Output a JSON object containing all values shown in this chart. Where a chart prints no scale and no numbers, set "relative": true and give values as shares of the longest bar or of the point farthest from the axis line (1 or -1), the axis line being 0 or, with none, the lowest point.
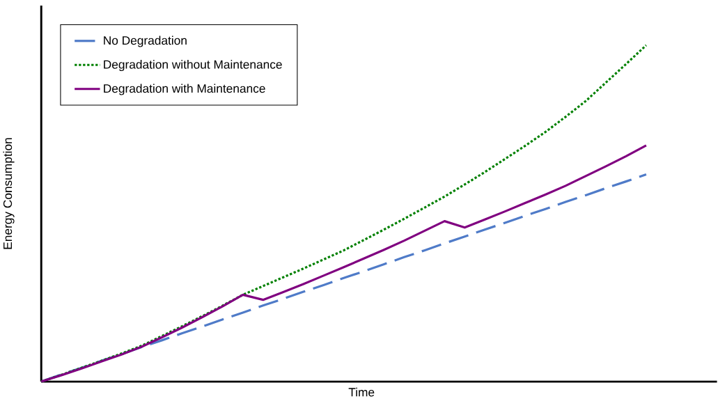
{
  "chart_data": {
    "type": "line",
    "relative": true,
    "xlabel": "Time",
    "ylabel": "Energy Consumption",
    "legend": "top left",
    "categories": [
      null,
      null,
      null,
      null,
      null,
      null,
      null,
      null,
      null,
      null,
      null,
      null,
      null,
      null,
      null,
      null,
      null,
      null,
      null,
      null,
      null,
      null,
      null,
      null,
      null,
      null,
      null,
      null,
      null,
      null,
      null
    ],
    "series": [
      {
        "name": "No Degradation",
        "color": "#4f7bc8",
        "line_style": "dashed",
        "values": [
          0,
          0.021,
          0.041,
          0.062,
          0.082,
          0.103,
          0.123,
          0.144,
          0.164,
          0.185,
          0.205,
          0.226,
          0.246,
          0.267,
          0.287,
          0.308,
          0.328,
          0.349,
          0.37,
          0.39,
          0.411,
          0.431,
          0.452,
          0.472,
          0.493,
          0.513,
          0.534,
          0.554,
          0.575,
          0.595,
          0.616
        ]
      },
      {
        "name": "Degradation without Maintenance",
        "color": "#008000",
        "line_style": "dotted",
        "values": [
          0,
          0.02,
          0.041,
          0.062,
          0.084,
          0.107,
          0.136,
          0.165,
          0.195,
          0.226,
          0.258,
          0.284,
          0.31,
          0.336,
          0.363,
          0.39,
          0.421,
          0.452,
          0.484,
          0.517,
          0.55,
          0.586,
          0.623,
          0.662,
          0.701,
          0.742,
          0.787,
          0.834,
          0.889,
          0.944,
          1.0
        ]
      },
      {
        "name": "Degradation with Maintenance",
        "color": "#800080",
        "line_style": "solid",
        "values": [
          0,
          0.019,
          0.039,
          0.06,
          0.081,
          0.104,
          0.132,
          0.161,
          0.192,
          0.224,
          0.258,
          0.243,
          0.266,
          0.29,
          0.315,
          0.34,
          0.366,
          0.392,
          0.419,
          0.448,
          0.477,
          0.458,
          0.482,
          0.506,
          0.531,
          0.556,
          0.582,
          0.611,
          0.64,
          0.67,
          0.702
        ]
      }
    ]
  }
}
